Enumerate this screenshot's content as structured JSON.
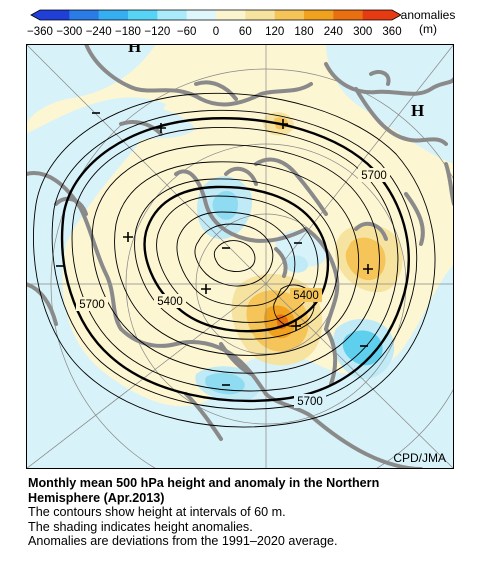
{
  "colorbar": {
    "ticks": [
      "−360",
      "−300",
      "−240",
      "−180",
      "−120",
      "−60",
      "0",
      "60",
      "120",
      "180",
      "240",
      "300",
      "360"
    ],
    "units_label": "anomalies",
    "units": "(m)",
    "colors": [
      "#1f3fd6",
      "#2a7be6",
      "#35aef2",
      "#57d4f5",
      "#a9ebfa",
      "#dff6fb",
      "#fbf5cf",
      "#f7e3a0",
      "#f5c55a",
      "#f0a21e",
      "#ea6f10",
      "#e53b12"
    ]
  },
  "map": {
    "contour_labels": [
      "5700",
      "5400",
      "5400",
      "5700",
      "5700"
    ],
    "high_markers": [
      "H",
      "H"
    ],
    "credit": "CPD/JMA"
  },
  "caption": {
    "title_line1": "Monthly mean 500 hPa height and anomaly in the Northern",
    "title_line2": "Hemisphere (Apr.2013)",
    "line1": "The contours show height at intervals of 60 m.",
    "line2": "The shading indicates height anomalies.",
    "line3": "Anomalies are deviations from the 1991–2020 average."
  }
}
